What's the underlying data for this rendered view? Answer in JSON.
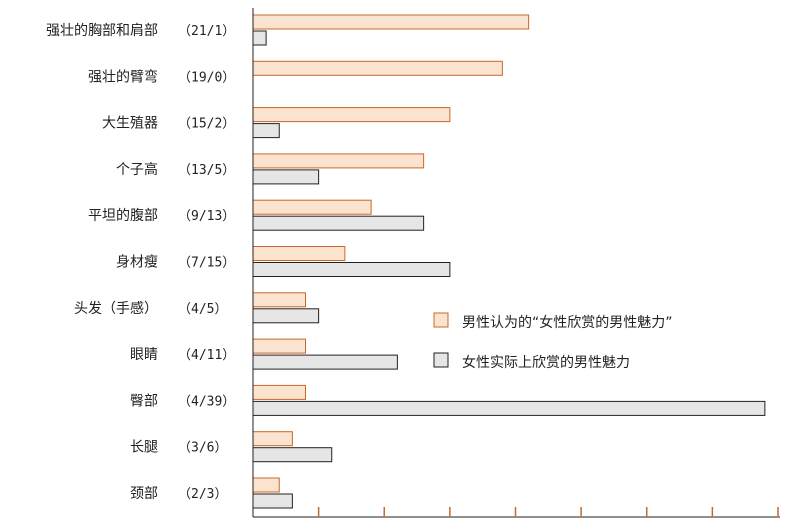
{
  "chart_data": {
    "type": "bar",
    "orientation": "horizontal",
    "categories": [
      "强壮的胸部和肩部",
      "强壮的臂弯",
      "大生殖器",
      "个子高",
      "平坦的腹部",
      "身材瘦",
      "头发（手感）",
      "眼睛",
      "臀部",
      "长腿",
      "颈部"
    ],
    "count_labels": [
      "（21/1）",
      "（19/0）",
      "（15/2）",
      "（13/5）",
      "（9/13）",
      "（7/15）",
      "（4/5）",
      "（4/11）",
      "（4/39）",
      "（3/6）",
      "（2/3）"
    ],
    "series": [
      {
        "name": "男性认为的“女性欣赏的男性魅力”",
        "values": [
          21,
          19,
          15,
          13,
          9,
          7,
          4,
          4,
          4,
          3,
          2
        ],
        "color": "#fbe3d0",
        "stroke": "#c8682a"
      },
      {
        "name": "女性实际上欣赏的男性魅力",
        "values": [
          1,
          0,
          2,
          5,
          13,
          15,
          5,
          11,
          39,
          6,
          3
        ],
        "color": "#e6e6e6",
        "stroke": "#222222"
      }
    ],
    "xlim": [
      0,
      40
    ],
    "x_ticks": [
      0,
      5,
      10,
      15,
      20,
      25,
      30,
      35,
      40
    ],
    "grid": false,
    "legend_position": "right",
    "title": "",
    "xlabel": "",
    "ylabel": ""
  }
}
